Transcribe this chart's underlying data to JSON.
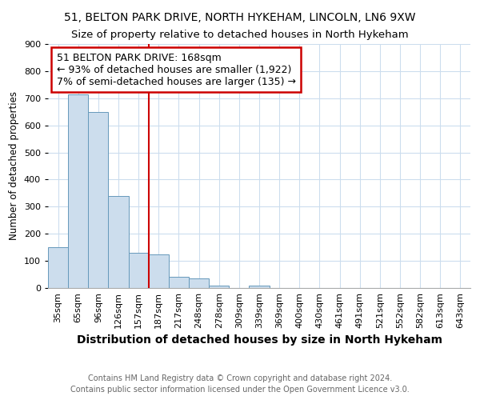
{
  "title1": "51, BELTON PARK DRIVE, NORTH HYKEHAM, LINCOLN, LN6 9XW",
  "title2": "Size of property relative to detached houses in North Hykeham",
  "xlabel": "Distribution of detached houses by size in North Hykeham",
  "ylabel": "Number of detached properties",
  "footnote1": "Contains HM Land Registry data © Crown copyright and database right 2024.",
  "footnote2": "Contains public sector information licensed under the Open Government Licence v3.0.",
  "bins": [
    "35sqm",
    "65sqm",
    "96sqm",
    "126sqm",
    "157sqm",
    "187sqm",
    "217sqm",
    "248sqm",
    "278sqm",
    "309sqm",
    "339sqm",
    "369sqm",
    "400sqm",
    "430sqm",
    "461sqm",
    "491sqm",
    "521sqm",
    "552sqm",
    "582sqm",
    "613sqm",
    "643sqm"
  ],
  "values": [
    150,
    715,
    650,
    340,
    130,
    125,
    42,
    35,
    10,
    0,
    8,
    0,
    0,
    0,
    0,
    0,
    0,
    0,
    0,
    0,
    0
  ],
  "bar_color": "#ccdded",
  "bar_edge_color": "#6699bb",
  "red_line_color": "#cc0000",
  "annotation_line1": "51 BELTON PARK DRIVE: 168sqm",
  "annotation_line2": "← 93% of detached houses are smaller (1,922)",
  "annotation_line3": "7% of semi-detached houses are larger (135) →",
  "annotation_box_color": "#cc0000",
  "ylim": [
    0,
    900
  ],
  "yticks": [
    0,
    100,
    200,
    300,
    400,
    500,
    600,
    700,
    800,
    900
  ],
  "grid_color": "#ccddee",
  "bg_color": "#ffffff",
  "title1_fontsize": 10,
  "title2_fontsize": 9.5,
  "xlabel_fontsize": 10,
  "ylabel_fontsize": 8.5,
  "tick_fontsize": 8,
  "annotation_fontsize": 9,
  "footnote_fontsize": 7
}
